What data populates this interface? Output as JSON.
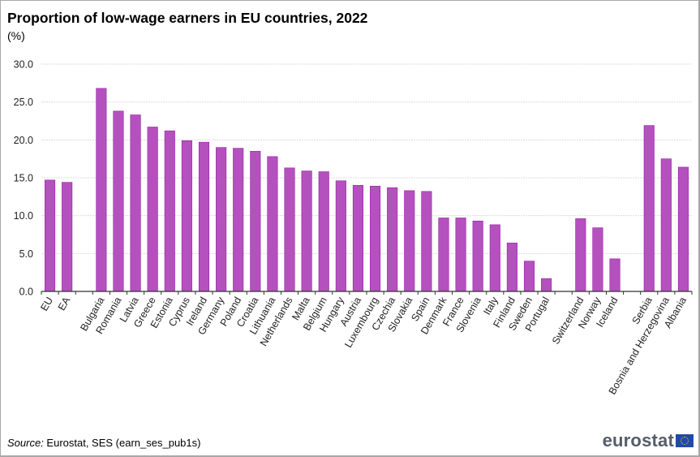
{
  "title": "Proportion of low-wage earners in EU countries, 2022",
  "subtitle": "(%)",
  "source_label": "Source:",
  "source_text": " Eurostat, SES (earn_ses_pub1s)",
  "logo": {
    "text": "eurostat",
    "icon": "eu-flag-icon"
  },
  "colors": {
    "bar": "#b451be",
    "bar_edge": "#9a1fa8",
    "grid": "#dcdcdc",
    "axis": "#333333"
  },
  "chart_data": {
    "type": "bar",
    "title": "Proportion of low-wage earners in EU countries, 2022",
    "subtitle": "(%)",
    "xlabel": "",
    "ylabel": "%",
    "ylim": [
      0,
      30
    ],
    "yticks": [
      "0.0",
      "5.0",
      "10.0",
      "15.0",
      "20.0",
      "25.0",
      "30.0"
    ],
    "grid": true,
    "legend": "none",
    "categories": [
      "EU",
      "EA",
      "",
      "Bulgaria",
      "Romania",
      "Latvia",
      "Greece",
      "Estonia",
      "Cyprus",
      "Ireland",
      "Germany",
      "Poland",
      "Croatia",
      "Lithuania",
      "Netherlands",
      "Malta",
      "Belgium",
      "Hungary",
      "Austria",
      "Luxembourg",
      "Czechia",
      "Slovakia",
      "Spain",
      "Denmark",
      "France",
      "Slovenia",
      "Italy",
      "Finland",
      "Sweden",
      "Portugal",
      "",
      "Switzerland",
      "Norway",
      "Iceland",
      "",
      "Serbia",
      "Bosnia and Herzegovina",
      "Albania"
    ],
    "values": [
      14.7,
      14.4,
      null,
      26.8,
      23.8,
      23.3,
      21.7,
      21.2,
      19.9,
      19.7,
      19.0,
      18.9,
      18.5,
      17.8,
      16.3,
      15.9,
      15.8,
      14.6,
      14.0,
      13.9,
      13.7,
      13.3,
      13.2,
      9.7,
      9.7,
      9.3,
      8.8,
      6.4,
      4.0,
      1.7,
      null,
      9.6,
      8.4,
      4.3,
      null,
      21.9,
      17.5,
      16.4
    ]
  }
}
